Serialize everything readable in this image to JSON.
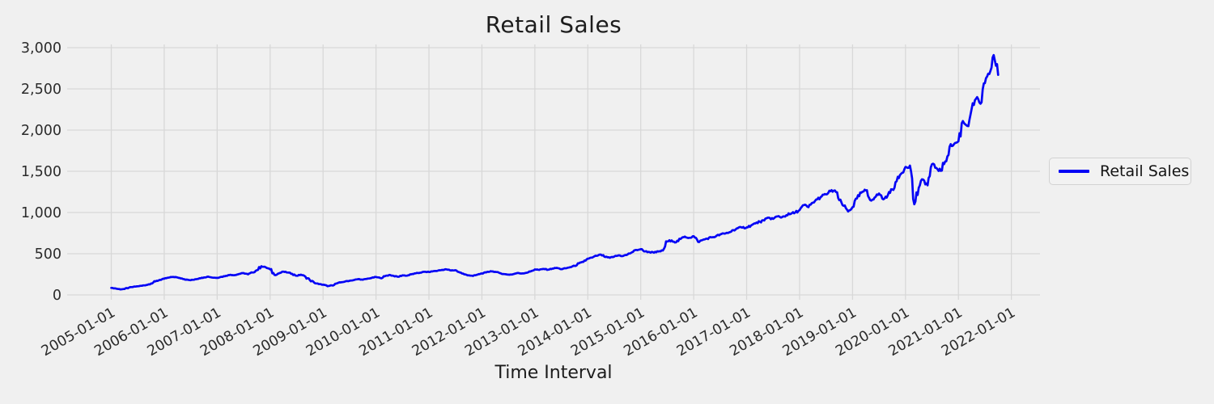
{
  "title": "Retail Sales",
  "x_axis": {
    "label": "Time Interval",
    "tick_labels": [
      "2005-01-01",
      "2006-01-01",
      "2007-01-01",
      "2008-01-01",
      "2009-01-01",
      "2010-01-01",
      "2011-01-01",
      "2012-01-01",
      "2013-01-01",
      "2014-01-01",
      "2015-01-01",
      "2016-01-01",
      "2017-01-01",
      "2018-01-01",
      "2019-01-01",
      "2020-01-01",
      "2021-01-01",
      "2022-01-01"
    ],
    "tick_rotation_deg": 30
  },
  "y_axis": {
    "tick_labels": [
      "0",
      "500",
      "1,000",
      "1,500",
      "2,000",
      "2,500",
      "3,000"
    ],
    "tick_values": [
      0,
      500,
      1000,
      1500,
      2000,
      2500,
      3000
    ]
  },
  "legend": {
    "label": "Retail Sales",
    "position": "right"
  },
  "colors": {
    "background": "#f0f0f0",
    "grid": "#d8d8d8",
    "line": "#0404f5",
    "tick_text": "#2b2b2b",
    "legend_border": "#d2d2d2",
    "legend_background": "#f2f2f2"
  },
  "chart_data": {
    "type": "line",
    "title": "Retail Sales",
    "xlabel": "Time Interval",
    "ylabel": "",
    "ylim": [
      0,
      3000
    ],
    "grid": true,
    "legend_position": "right of plot",
    "x_start": "2005-01",
    "x_step_months": 1,
    "x_end": "2021-10",
    "series": [
      {
        "name": "Retail Sales",
        "values": [
          85,
          78,
          68,
          72,
          88,
          98,
          105,
          112,
          121,
          138,
          164,
          182,
          196,
          210,
          219,
          212,
          200,
          186,
          178,
          190,
          202,
          212,
          222,
          210,
          208,
          220,
          232,
          244,
          240,
          255,
          265,
          250,
          272,
          300,
          348,
          335,
          310,
          242,
          262,
          282,
          272,
          256,
          232,
          246,
          222,
          180,
          148,
          132,
          124,
          106,
          116,
          138,
          152,
          163,
          172,
          180,
          192,
          184,
          196,
          206,
          218,
          204,
          226,
          243,
          230,
          220,
          238,
          233,
          250,
          262,
          270,
          280,
          278,
          288,
          294,
          304,
          310,
          296,
          300,
          273,
          250,
          238,
          230,
          246,
          261,
          274,
          288,
          280,
          266,
          253,
          246,
          250,
          266,
          260,
          268,
          284,
          310,
          304,
          316,
          306,
          320,
          328,
          313,
          323,
          336,
          353,
          383,
          400,
          440,
          453,
          475,
          488,
          460,
          450,
          466,
          480,
          473,
          490,
          518,
          546,
          555,
          528,
          520,
          513,
          526,
          538,
          648,
          662,
          638,
          678,
          708,
          693,
          713,
          643,
          666,
          683,
          698,
          710,
          733,
          743,
          758,
          786,
          810,
          816,
          820,
          843,
          868,
          888,
          903,
          938,
          923,
          953,
          943,
          968,
          983,
          1000,
          1030,
          1090,
          1065,
          1120,
          1160,
          1195,
          1220,
          1258,
          1268,
          1150,
          1080,
          1013,
          1065,
          1170,
          1240,
          1268,
          1150,
          1180,
          1230,
          1160,
          1210,
          1280,
          1380,
          1470,
          1553,
          1570,
          1100,
          1300,
          1400,
          1330,
          1585,
          1540,
          1505,
          1620,
          1798,
          1830,
          1864,
          2110,
          2050,
          2260,
          2380,
          2320,
          2570,
          2680,
          2910,
          2670
        ]
      }
    ]
  }
}
